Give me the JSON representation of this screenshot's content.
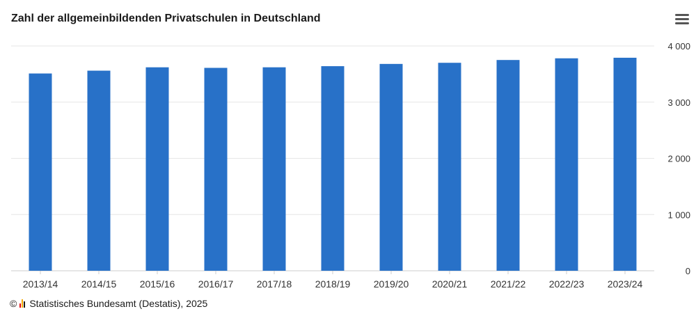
{
  "title": "Zahl der allgemeinbildenden Privatschulen in Deutschland",
  "menu_icon": "hamburger-menu-icon",
  "footer": {
    "copyright_symbol": "©",
    "logo_icon": "destatis-logo-icon",
    "text": "Statistisches Bundesamt (Destatis), 2025"
  },
  "colors": {
    "bar": "#2871c8",
    "grid": "#e6e6e6",
    "axis": "#cccccc"
  },
  "chart_data": {
    "type": "bar",
    "title": "Zahl der allgemeinbildenden Privatschulen in Deutschland",
    "xlabel": "",
    "ylabel": "",
    "categories": [
      "2013/14",
      "2014/15",
      "2015/16",
      "2016/17",
      "2017/18",
      "2018/19",
      "2019/20",
      "2020/21",
      "2021/22",
      "2022/23",
      "2023/24"
    ],
    "values": [
      3510,
      3560,
      3620,
      3610,
      3620,
      3640,
      3680,
      3700,
      3750,
      3780,
      3790
    ],
    "ylim": [
      0,
      4000
    ],
    "yticks": [
      0,
      1000,
      2000,
      3000,
      4000
    ],
    "ytick_labels": [
      "0",
      "1 000",
      "2 000",
      "3 000",
      "4 000"
    ],
    "y_axis_side": "right",
    "grid": true,
    "legend": "none"
  }
}
